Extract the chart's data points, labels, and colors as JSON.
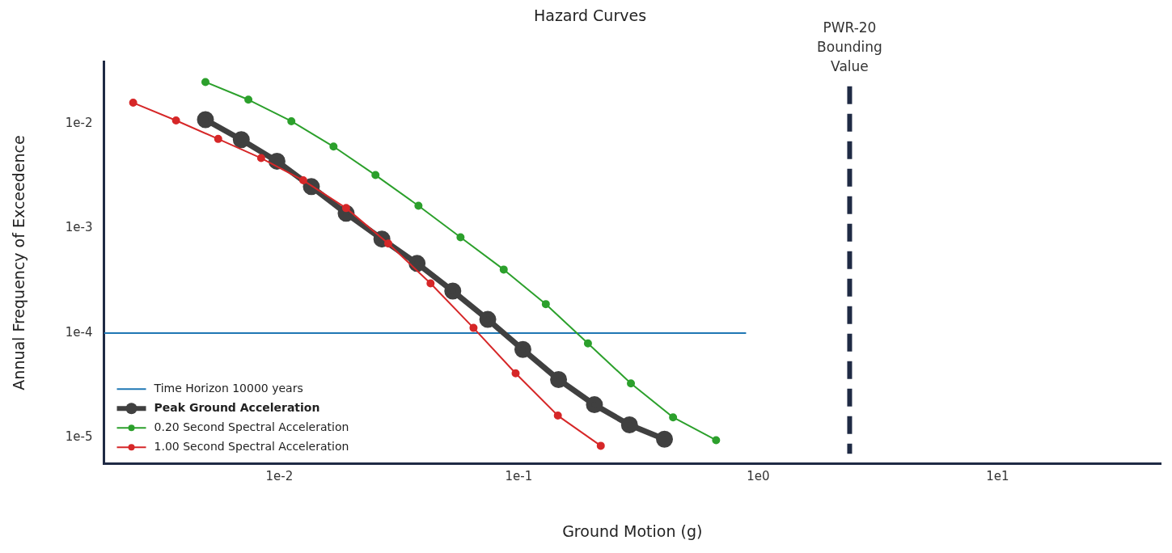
{
  "chart_data": {
    "type": "line",
    "title": "Hazard Curves",
    "xlabel": "Ground Motion (g)",
    "ylabel": "Annual Frequency of Exceedence",
    "log": "xy",
    "grid": false,
    "legend": "bottom left",
    "marker": "circle",
    "xlim": [
      0.00185,
      48
    ],
    "ylim": [
      5.7e-06,
      0.0386
    ],
    "xticks": [
      {
        "value": 0.01,
        "label": "1e-2"
      },
      {
        "value": 0.1,
        "label": "1e-1"
      },
      {
        "value": 1,
        "label": "1e0"
      },
      {
        "value": 10,
        "label": "1e1"
      }
    ],
    "yticks": [
      {
        "value": 1e-05,
        "label": "1e-5"
      },
      {
        "value": 0.0001,
        "label": "1e-4"
      },
      {
        "value": 0.001,
        "label": "1e-3"
      },
      {
        "value": 0.01,
        "label": "1e-2"
      }
    ],
    "series": [
      {
        "name": "Time Horizon 10000 years",
        "color": "#1f77b4",
        "marker": "none",
        "x": [
          0.00185,
          0.89
        ],
        "values": [
          0.0001,
          0.0001
        ]
      },
      {
        "name": "Peak Ground Acceleration",
        "color": "#404040",
        "x": [
          0.00491,
          0.00693,
          0.00977,
          0.0136,
          0.019,
          0.0268,
          0.0376,
          0.053,
          0.0742,
          0.104,
          0.1466,
          0.207,
          0.29,
          0.406
        ],
        "values": [
          0.0109,
          0.00702,
          0.00437,
          0.0025,
          0.00139,
          0.00079,
          0.000462,
          0.000252,
          0.000135,
          6.97e-05,
          3.6e-05,
          2.07e-05,
          1.33e-05,
          9.7e-06
        ]
      },
      {
        "name": "0.20 Second Spectral Acceleration",
        "color": "#2ca02c",
        "x": [
          0.00491,
          0.00742,
          0.01122,
          0.01683,
          0.0252,
          0.0381,
          0.0571,
          0.0865,
          0.1297,
          0.1945,
          0.294,
          0.441,
          0.667
        ],
        "values": [
          0.0249,
          0.0169,
          0.01052,
          0.00603,
          0.00322,
          0.00164,
          0.00082,
          0.000404,
          0.000189,
          7.97e-05,
          3.31e-05,
          1.57e-05,
          9.5e-06
        ]
      },
      {
        "name": "1.00 Second Spectral Acceleration",
        "color": "#d62728",
        "x": [
          0.00245,
          0.0037,
          0.00555,
          0.00839,
          0.01258,
          0.019,
          0.0285,
          0.0428,
          0.0647,
          0.097,
          0.1456,
          0.22
        ],
        "values": [
          0.0158,
          0.0107,
          0.00713,
          0.00468,
          0.00287,
          0.00156,
          0.000716,
          0.000298,
          0.000112,
          4.13e-05,
          1.63e-05,
          8.4e-06
        ]
      }
    ],
    "ref_lines": [
      {
        "axis": "x",
        "value": 2.41,
        "label": "PWR-20 Bounding Value",
        "color": "#1f2a44",
        "line_style": "dashed"
      }
    ]
  }
}
